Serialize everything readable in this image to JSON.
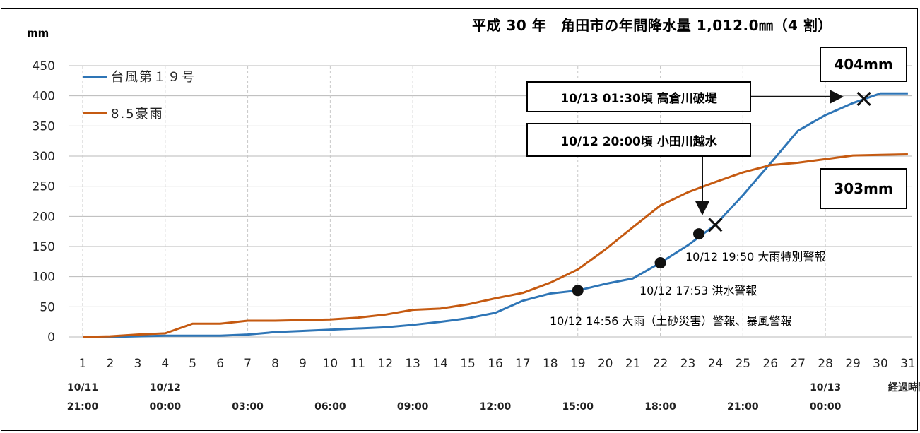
{
  "chart_data": {
    "type": "line",
    "title": "平成 30 年　角田市の年間降水量 1,012.0㎜（4 割）",
    "ylabel": "mm",
    "xlabel": "経過時間",
    "ylim": [
      0,
      450
    ],
    "yticks": [
      "0",
      "50",
      "100",
      "150",
      "200",
      "250",
      "300",
      "350",
      "400",
      "450"
    ],
    "x": [
      1,
      2,
      3,
      4,
      5,
      6,
      7,
      8,
      9,
      10,
      11,
      12,
      13,
      14,
      15,
      16,
      17,
      18,
      19,
      20,
      21,
      22,
      23,
      24,
      25,
      26,
      27,
      28,
      29,
      30,
      31
    ],
    "xticks": [
      "1",
      "2",
      "3",
      "4",
      "5",
      "6",
      "7",
      "8",
      "9",
      "10",
      "11",
      "12",
      "13",
      "14",
      "15",
      "16",
      "17",
      "18",
      "19",
      "20",
      "21",
      "22",
      "23",
      "24",
      "25",
      "26",
      "27",
      "28",
      "29",
      "30",
      "31"
    ],
    "time_labels": [
      {
        "x": 1,
        "date": "10/11",
        "time": "21:00"
      },
      {
        "x": 4,
        "date": "10/12",
        "time": "00:00"
      },
      {
        "x": 7,
        "date": "",
        "time": "03:00"
      },
      {
        "x": 10,
        "date": "",
        "time": "06:00"
      },
      {
        "x": 13,
        "date": "",
        "time": "09:00"
      },
      {
        "x": 16,
        "date": "",
        "time": "12:00"
      },
      {
        "x": 19,
        "date": "",
        "time": "15:00"
      },
      {
        "x": 22,
        "date": "",
        "time": "18:00"
      },
      {
        "x": 25,
        "date": "",
        "time": "21:00"
      },
      {
        "x": 28,
        "date": "10/13",
        "time": "00:00"
      }
    ],
    "grid": true,
    "legend": "top-left",
    "series": [
      {
        "name": "台風第１９号",
        "color": "#2E75B6",
        "values": [
          0,
          0,
          1,
          2,
          2,
          2,
          4,
          8,
          10,
          12,
          14,
          16,
          20,
          25,
          31,
          40,
          60,
          72,
          77,
          88,
          97,
          123,
          152,
          186,
          235,
          288,
          342,
          368,
          388,
          404,
          404
        ]
      },
      {
        "name": "8.5豪雨",
        "color": "#C55A11",
        "values": [
          0,
          1,
          4,
          6,
          22,
          22,
          27,
          27,
          28,
          29,
          32,
          37,
          45,
          47,
          54,
          64,
          73,
          90,
          112,
          145,
          182,
          218,
          240,
          257,
          273,
          285,
          289,
          295,
          301,
          302,
          303
        ]
      }
    ],
    "markers": [
      {
        "type": "dot",
        "x": 19,
        "y": 77
      },
      {
        "type": "dot",
        "x": 22,
        "y": 123
      },
      {
        "type": "dot",
        "x": 23.4,
        "y": 171
      },
      {
        "type": "cross",
        "x": 24,
        "y": 186
      },
      {
        "type": "cross",
        "x": 29.4,
        "y": 395
      }
    ],
    "annotations": {
      "end_typhoon": "404mm",
      "end_heavy_rain": "303mm",
      "levee_break": "10/13 01:30頃 高倉川破堤",
      "overflow": "10/12 20:00頃 小田川越水",
      "warning_1950": "10/12 19:50 大雨特別警報",
      "warning_1753": "10/12 17:53 洪水警報",
      "warning_1456": "10/12 14:56 大雨（土砂災害）警報、暴風警報"
    }
  }
}
